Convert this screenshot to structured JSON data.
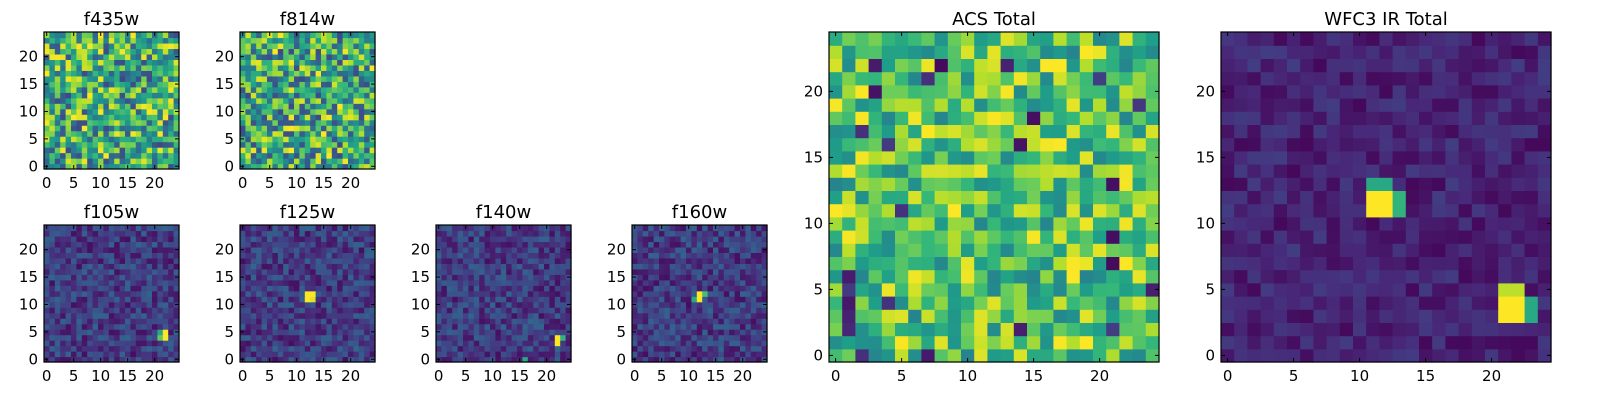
{
  "chart_data": [
    {
      "type": "heatmap",
      "title": "f435w",
      "grid": [
        25,
        25
      ],
      "xticks": [
        0,
        5,
        10,
        15,
        20
      ],
      "yticks": [
        0,
        5,
        10,
        15,
        20
      ],
      "colormap": "viridis",
      "seed": 11,
      "pattern": "acs",
      "hot_pixels": []
    },
    {
      "type": "heatmap",
      "title": "f814w",
      "grid": [
        25,
        25
      ],
      "xticks": [
        0,
        5,
        10,
        15,
        20
      ],
      "yticks": [
        0,
        5,
        10,
        15,
        20
      ],
      "colormap": "viridis",
      "seed": 23,
      "pattern": "acs",
      "hot_pixels": []
    },
    {
      "type": "heatmap",
      "title": "f105w",
      "grid": [
        25,
        25
      ],
      "xticks": [
        0,
        5,
        10,
        15,
        20
      ],
      "yticks": [
        0,
        5,
        10,
        15,
        20
      ],
      "colormap": "viridis",
      "seed": 37,
      "pattern": "ir",
      "hot_pixels": [
        {
          "x": 22,
          "y": 4,
          "v": 1.0
        },
        {
          "x": 22,
          "y": 5,
          "v": 1.0
        },
        {
          "x": 21,
          "y": 4,
          "v": 0.75
        },
        {
          "x": 21,
          "y": 5,
          "v": 0.6
        }
      ]
    },
    {
      "type": "heatmap",
      "title": "f125w",
      "grid": [
        25,
        25
      ],
      "xticks": [
        0,
        5,
        10,
        15,
        20
      ],
      "yticks": [
        0,
        5,
        10,
        15,
        20
      ],
      "colormap": "viridis",
      "seed": 41,
      "pattern": "ir",
      "hot_pixels": [
        {
          "x": 12,
          "y": 12,
          "v": 1.0
        },
        {
          "x": 12,
          "y": 11,
          "v": 1.0
        },
        {
          "x": 13,
          "y": 12,
          "v": 1.0
        },
        {
          "x": 13,
          "y": 11,
          "v": 0.95
        }
      ]
    },
    {
      "type": "heatmap",
      "title": "f140w",
      "grid": [
        25,
        25
      ],
      "xticks": [
        0,
        5,
        10,
        15,
        20
      ],
      "yticks": [
        0,
        5,
        10,
        15,
        20
      ],
      "colormap": "viridis",
      "seed": 53,
      "pattern": "ir",
      "hot_pixels": [
        {
          "x": 22,
          "y": 3,
          "v": 1.0
        },
        {
          "x": 22,
          "y": 4,
          "v": 1.0
        },
        {
          "x": 23,
          "y": 4,
          "v": 0.65
        },
        {
          "x": 16,
          "y": 0,
          "v": 0.6
        }
      ]
    },
    {
      "type": "heatmap",
      "title": "f160w",
      "grid": [
        25,
        25
      ],
      "xticks": [
        0,
        5,
        10,
        15,
        20
      ],
      "yticks": [
        0,
        5,
        10,
        15,
        20
      ],
      "colormap": "viridis",
      "seed": 67,
      "pattern": "ir",
      "hot_pixels": [
        {
          "x": 12,
          "y": 12,
          "v": 1.0
        },
        {
          "x": 12,
          "y": 11,
          "v": 1.0
        },
        {
          "x": 13,
          "y": 12,
          "v": 0.7
        },
        {
          "x": 11,
          "y": 11,
          "v": 0.6
        }
      ]
    },
    {
      "type": "heatmap",
      "title": "ACS Total",
      "grid": [
        25,
        25
      ],
      "xticks": [
        0,
        5,
        10,
        15,
        20
      ],
      "yticks": [
        0,
        5,
        10,
        15,
        20
      ],
      "colormap": "viridis",
      "seed": 79,
      "pattern": "acs_total",
      "hot_pixels": []
    },
    {
      "type": "heatmap",
      "title": "WFC3 IR Total",
      "grid": [
        25,
        25
      ],
      "xticks": [
        0,
        5,
        10,
        15,
        20
      ],
      "yticks": [
        0,
        5,
        10,
        15,
        20
      ],
      "colormap": "viridis",
      "seed": 83,
      "pattern": "ir_total",
      "hot_pixels": [
        {
          "x": 11,
          "y": 11,
          "v": 1.0
        },
        {
          "x": 12,
          "y": 11,
          "v": 1.0
        },
        {
          "x": 11,
          "y": 12,
          "v": 1.0
        },
        {
          "x": 12,
          "y": 12,
          "v": 1.0
        },
        {
          "x": 13,
          "y": 12,
          "v": 0.65
        },
        {
          "x": 13,
          "y": 11,
          "v": 0.65
        },
        {
          "x": 11,
          "y": 13,
          "v": 0.6
        },
        {
          "x": 12,
          "y": 13,
          "v": 0.6
        },
        {
          "x": 22,
          "y": 3,
          "v": 1.0
        },
        {
          "x": 22,
          "y": 4,
          "v": 1.0
        },
        {
          "x": 21,
          "y": 3,
          "v": 1.0
        },
        {
          "x": 21,
          "y": 4,
          "v": 1.0
        },
        {
          "x": 22,
          "y": 5,
          "v": 0.9
        },
        {
          "x": 21,
          "y": 5,
          "v": 0.9
        },
        {
          "x": 23,
          "y": 4,
          "v": 0.6
        },
        {
          "x": 23,
          "y": 3,
          "v": 0.6
        }
      ]
    }
  ]
}
